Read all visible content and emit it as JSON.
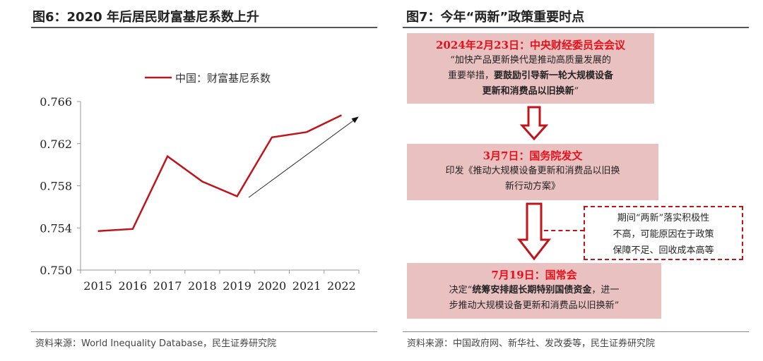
{
  "left": {
    "title": "图6：2020 年后居民财富基尼系数上升",
    "source": "资料来源：World Inequality Database，民生证券研究院"
  },
  "right": {
    "title": "图7：今年“两新”政策重要时点",
    "source": "资料来源：中国政府网、新华社、发改委等，民生证券研究院",
    "box1": {
      "head": "2024年2月23日：中央财经委员会会议",
      "l1": "“加快产品更新换代是推动高质量发展的",
      "l2a": "重要举措，",
      "l2b": "要鼓励引导新一轮大规模设备",
      "l3": "更新和消费品以旧换新",
      "l3q": "”"
    },
    "box2": {
      "head": "3月7日：国务院发文",
      "l1": "印发《推动大规模设备更新和消费品以旧换",
      "l2": "新行动方案》"
    },
    "box3": {
      "head": "7月19日：国常会",
      "l1a": "决定“",
      "l1b": "统筹安排超长期特别国债资金",
      "l1c": "，进一",
      "l2": "步推动大规模设备更新和消费品以旧换新”"
    },
    "note": {
      "l1": "期间“两新”落实积极性",
      "l2": "不高，可能原因在于政策",
      "l3": "保障不足、回收成本高等"
    }
  },
  "colors": {
    "line": "#c0141b",
    "box": "#eac1c1",
    "head": "#e8101a"
  },
  "chart_data": {
    "type": "line",
    "title": "",
    "xlabel": "",
    "ylabel": "",
    "categories": [
      "2015",
      "2016",
      "2017",
      "2018",
      "2019",
      "2020",
      "2021",
      "2022"
    ],
    "series": [
      {
        "name": "中国：财富基尼系数",
        "values": [
          0.7537,
          0.7539,
          0.7608,
          0.7584,
          0.757,
          0.7626,
          0.7631,
          0.7647
        ]
      }
    ],
    "ylim": [
      0.75,
      0.766
    ],
    "yticks": [
      "0.750",
      "0.754",
      "0.758",
      "0.762",
      "0.766"
    ],
    "legend": "top",
    "grid": false,
    "annotation": "upward trend arrow from 2019 to 2022"
  }
}
